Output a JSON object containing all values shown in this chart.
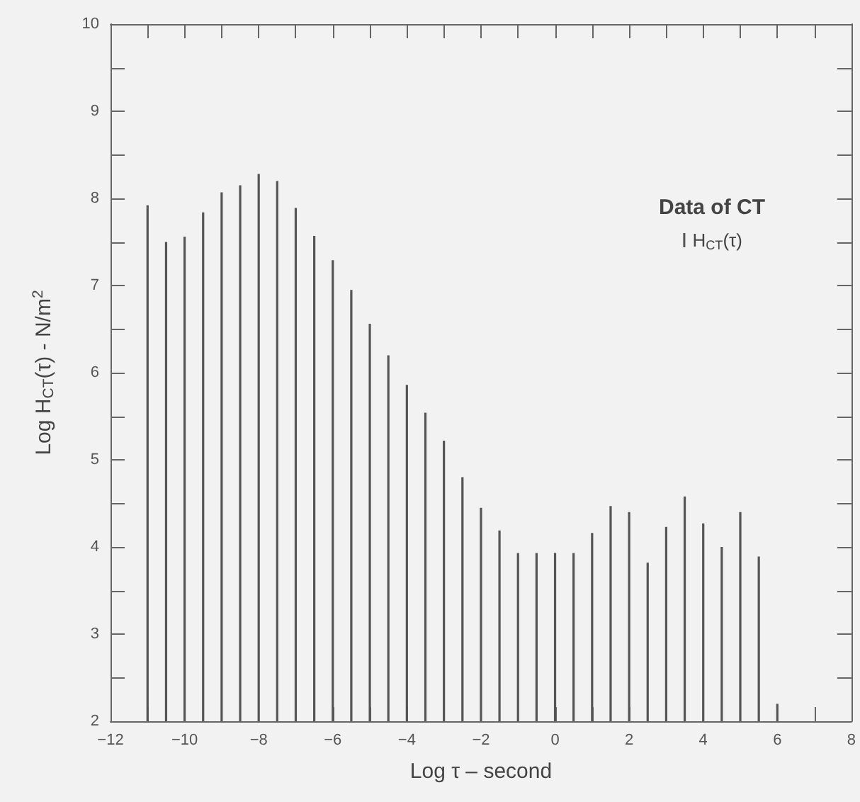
{
  "chart_data": {
    "type": "bar",
    "legend_title": "Data of CT",
    "xlabel": "Log τ – second",
    "ylabel": "Log H$_{CT}$(τ) - N/m$^{2}$",
    "x": [
      -11,
      -10.5,
      -10,
      -9.5,
      -9,
      -8.5,
      -8,
      -7.5,
      -7,
      -6.5,
      -6,
      -5.5,
      -5,
      -4.5,
      -4,
      -3.5,
      -3,
      -2.5,
      -2,
      -1.5,
      -1,
      -0.5,
      0,
      0.5,
      1,
      1.5,
      2,
      2.5,
      3,
      3.5,
      4,
      4.5,
      5,
      5.5,
      6
    ],
    "series": [
      {
        "name": "H$_{CT}$(τ)",
        "color": "#555555",
        "values": [
          7.92,
          7.5,
          7.56,
          7.84,
          8.07,
          8.15,
          8.28,
          8.2,
          7.89,
          7.57,
          7.29,
          6.95,
          6.56,
          6.2,
          5.86,
          5.54,
          5.22,
          4.8,
          4.45,
          4.19,
          3.93,
          3.93,
          3.93,
          3.93,
          4.16,
          4.47,
          4.4,
          3.82,
          4.23,
          4.58,
          4.27,
          4.0,
          4.4,
          3.89,
          2.2
        ]
      }
    ],
    "xlim": [
      -12,
      8
    ],
    "xticks": [
      -12,
      {
        "value": -11,
        "label": null
      },
      -10,
      {
        "value": -9,
        "label": null
      },
      -8,
      {
        "value": -7,
        "label": null
      },
      -6,
      {
        "value": -5,
        "label": null
      },
      -4,
      {
        "value": -3,
        "label": null
      },
      -2,
      {
        "value": -1,
        "label": null
      },
      0,
      {
        "value": 1,
        "label": null
      },
      2,
      {
        "value": 3,
        "label": null
      },
      4,
      {
        "value": 5,
        "label": null
      },
      6,
      {
        "value": 7,
        "label": null
      },
      8
    ],
    "ylim": [
      2,
      10
    ],
    "yticks": [
      2,
      {
        "value": 2.5,
        "label": null
      },
      3,
      {
        "value": 3.5,
        "label": null
      },
      4,
      {
        "value": 4.5,
        "label": null
      },
      5,
      {
        "value": 5.5,
        "label": null
      },
      6,
      {
        "value": 6.5,
        "label": null
      },
      7,
      {
        "value": 7.5,
        "label": null
      },
      8,
      {
        "value": 8.5,
        "label": null
      },
      9,
      {
        "value": 9.5,
        "label": null
      },
      10
    ],
    "grid": false,
    "legend": "top right"
  }
}
